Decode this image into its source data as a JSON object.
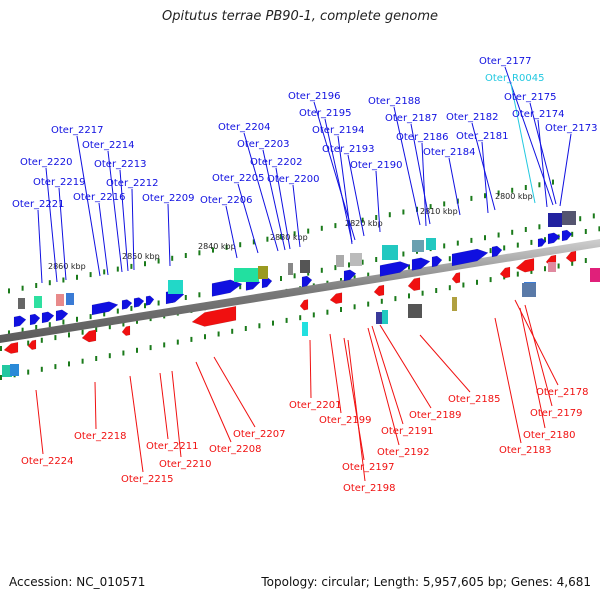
{
  "title": "Opitutus terrae PB90-1, complete genome",
  "accession_text": "Accession: NC_010571",
  "topology_text": "Topology: circular; Length: 5,957,605 bp; Genes: 4,681",
  "colors": {
    "forward": "#1010e0",
    "reverse": "#f01010",
    "rna": "#22c8e0",
    "tick": "#1a7a1a",
    "backbone": "#8a8a8a"
  },
  "scale_labels": [
    "2800 kbp",
    "2810 kbp",
    "2820 kbp",
    "2830 kbp",
    "2840 kbp",
    "2850 kbp",
    "2860 kbp"
  ],
  "forward_labels": [
    "Oter_2177",
    "Oter_R0045",
    "Oter_2175",
    "Oter_2174",
    "Oter_2173",
    "Oter_2188",
    "Oter_2182",
    "Oter_2187",
    "Oter_2181",
    "Oter_2186",
    "Oter_2184",
    "Oter_2196",
    "Oter_2195",
    "Oter_2194",
    "Oter_2193",
    "Oter_2190",
    "Oter_2204",
    "Oter_2203",
    "Oter_2202",
    "Oter_2205",
    "Oter_2200",
    "Oter_2206",
    "Oter_2217",
    "Oter_2214",
    "Oter_2220",
    "Oter_2213",
    "Oter_2219",
    "Oter_2212",
    "Oter_2216",
    "Oter_2209",
    "Oter_2221"
  ],
  "reverse_labels": [
    "Oter_2185",
    "Oter_2178",
    "Oter_2179",
    "Oter_2180",
    "Oter_2183",
    "Oter_2201",
    "Oter_2199",
    "Oter_2189",
    "Oter_2191",
    "Oter_2192",
    "Oter_2197",
    "Oter_2198",
    "Oter_2218",
    "Oter_2207",
    "Oter_2211",
    "Oter_2208",
    "Oter_2210",
    "Oter_2224",
    "Oter_2215"
  ]
}
